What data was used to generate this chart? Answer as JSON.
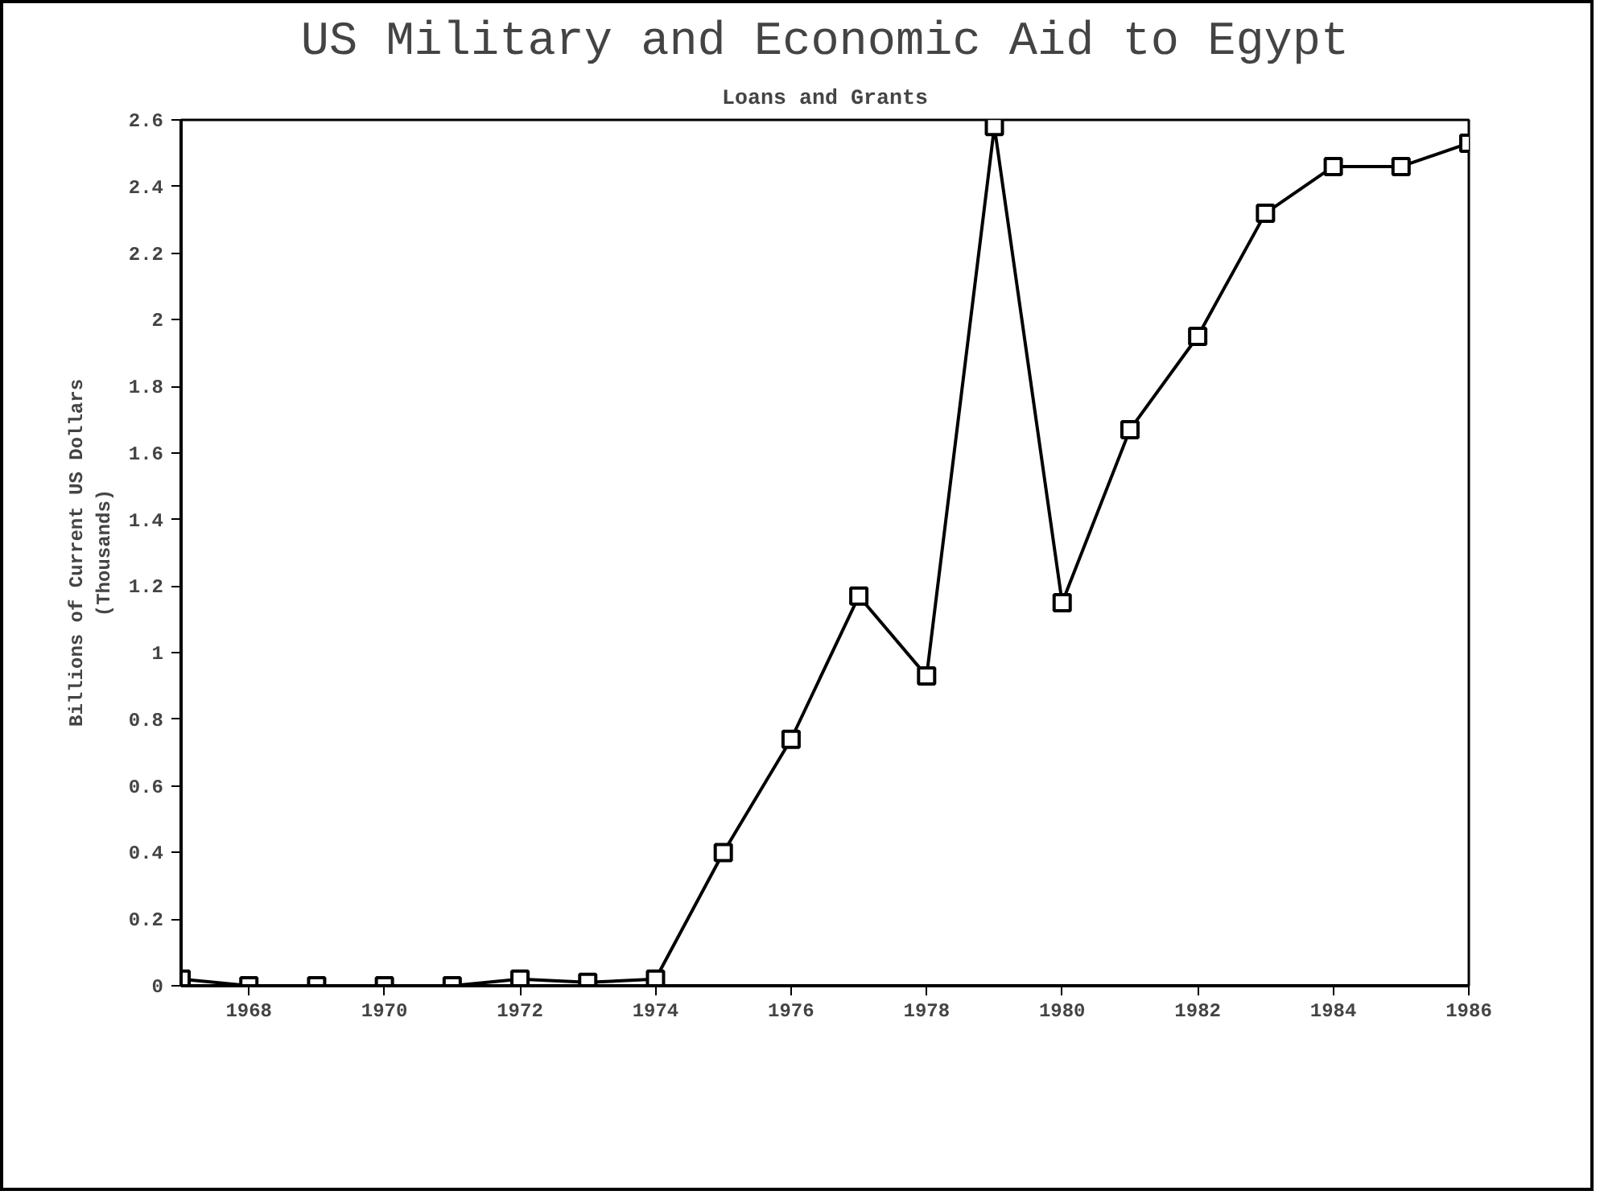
{
  "chart_data": {
    "type": "line",
    "title": "US Military and Economic Aid to Egypt",
    "subtitle": "Loans and Grants",
    "ylabel": "Billions of Current US Dollars\n(Thousands)",
    "x": [
      1967,
      1968,
      1969,
      1970,
      1971,
      1972,
      1973,
      1974,
      1975,
      1976,
      1977,
      1978,
      1979,
      1980,
      1981,
      1982,
      1983,
      1984,
      1985,
      1986
    ],
    "series": [
      {
        "color": "#000000",
        "values": [
          0.02,
          0,
          0,
          0,
          0,
          0.02,
          0.01,
          0.02,
          0.4,
          0.74,
          1.17,
          0.93,
          2.58,
          1.15,
          1.67,
          1.95,
          2.32,
          2.46,
          2.46,
          2.53
        ]
      }
    ],
    "xlim": [
      1967,
      1986
    ],
    "xticks": [
      1968,
      1970,
      1972,
      1974,
      1976,
      1978,
      1980,
      1982,
      1984,
      1986
    ],
    "ylim": [
      0,
      2.6
    ],
    "yticks": [
      0,
      0.2,
      0.4,
      0.6,
      0.8,
      1,
      1.2,
      1.4,
      1.6,
      1.8,
      2,
      2.2,
      2.4,
      2.6
    ],
    "marker": "square",
    "line_style": "solid",
    "grid": false
  }
}
